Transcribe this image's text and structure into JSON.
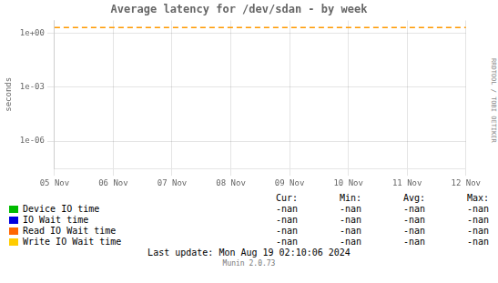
{
  "chart_data": {
    "type": "line",
    "title": "Average latency for /dev/sdan - by week",
    "y_label": "seconds",
    "categories": [
      "05 Nov",
      "06 Nov",
      "07 Nov",
      "08 Nov",
      "09 Nov",
      "10 Nov",
      "11 Nov",
      "12 Nov"
    ],
    "series": [
      {
        "name": "Device IO time",
        "color": "#00bb00",
        "values": [
          null,
          null,
          null,
          null,
          null,
          null,
          null,
          null
        ]
      },
      {
        "name": "IO Wait time",
        "color": "#0000dd",
        "values": [
          null,
          null,
          null,
          null,
          null,
          null,
          null,
          null
        ]
      },
      {
        "name": "Read IO Wait time",
        "color": "#ff6600",
        "values": [
          null,
          null,
          null,
          null,
          null,
          null,
          null,
          null
        ]
      },
      {
        "name": "Write IO Wait time",
        "color": "#ffcc00",
        "values": [
          null,
          null,
          null,
          null,
          null,
          null,
          null,
          null
        ]
      },
      {
        "color": "#ff9900",
        "line_style": "dashed",
        "values": [
          2.0,
          2.0,
          2.0,
          2.0,
          2.0,
          2.0,
          2.0,
          2.0
        ]
      }
    ],
    "log": "y",
    "ylim": [
      3e-08,
      5
    ],
    "yticks": [
      {
        "value": 1e-06,
        "label": "1e-06"
      },
      {
        "value": 0.001,
        "label": "1e-03"
      },
      {
        "value": 1,
        "label": "1e+00"
      }
    ],
    "grid": true,
    "legend": "bottom",
    "table": {
      "columns": [
        "Cur:",
        "Min:",
        "Avg:",
        "Max:"
      ],
      "cells": [
        [
          "-nan",
          "-nan",
          "-nan",
          "-nan"
        ],
        [
          "-nan",
          "-nan",
          "-nan",
          "-nan"
        ],
        [
          "-nan",
          "-nan",
          "-nan",
          "-nan"
        ],
        [
          "-nan",
          "-nan",
          "-nan",
          "-nan"
        ]
      ]
    },
    "annotations": [
      "Last update: Mon Aug 19 02:10:06 2024",
      "Munin 2.0.73",
      "RRDTOOL / TOBI OETIKER"
    ]
  }
}
